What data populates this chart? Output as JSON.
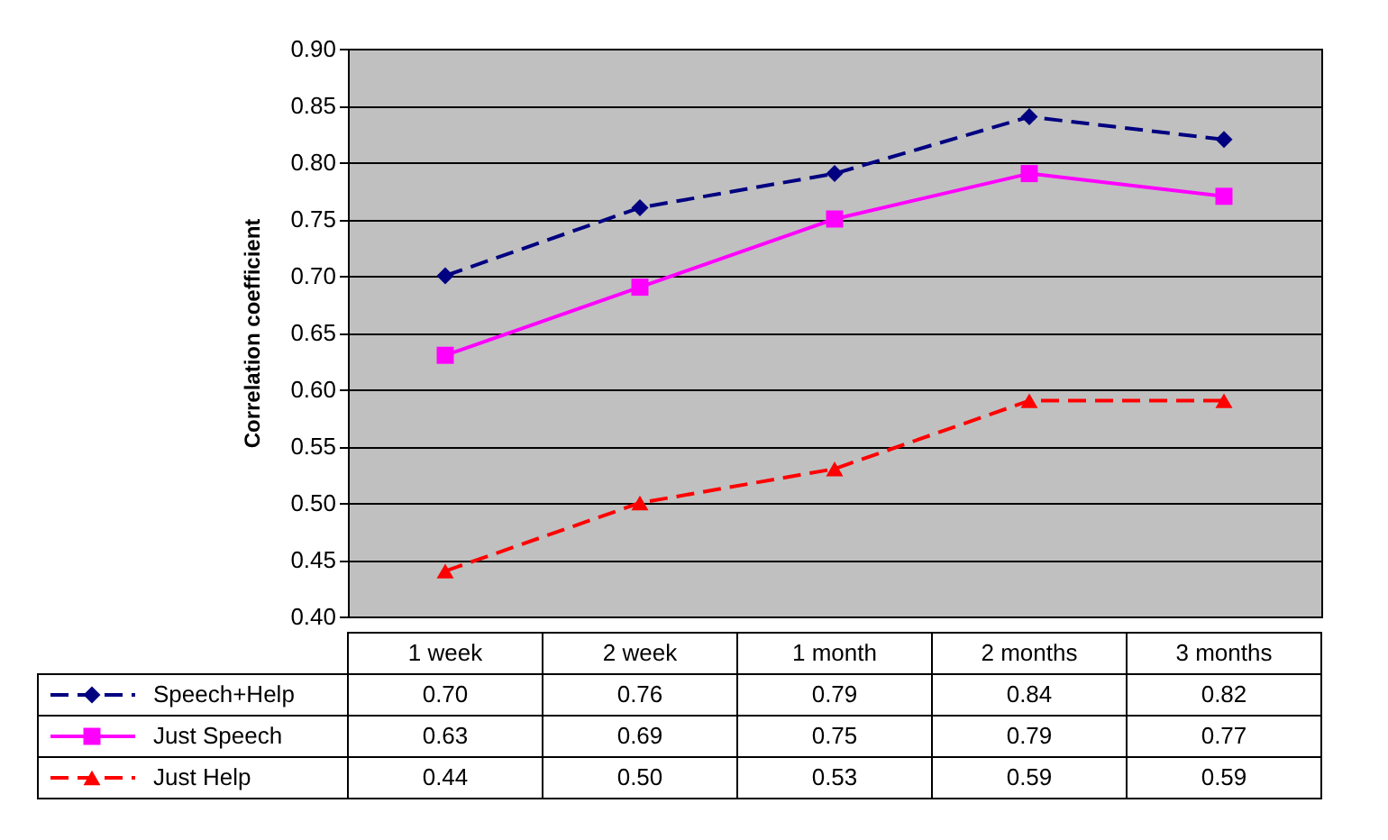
{
  "chart_data": {
    "type": "line",
    "ylabel": "Correlation coefficient",
    "categories": [
      "1 week",
      "2 week",
      "1 month",
      "2 months",
      "3 months"
    ],
    "series": [
      {
        "name": "Speech+Help",
        "color": "#000080",
        "values": [
          0.7,
          0.76,
          0.79,
          0.84,
          0.82
        ],
        "value_labels": [
          "0.70",
          "0.76",
          "0.79",
          "0.84",
          "0.82"
        ],
        "marker": "diamond",
        "line_style": "dashed"
      },
      {
        "name": "Just Speech",
        "color": "#ff00ff",
        "values": [
          0.63,
          0.69,
          0.75,
          0.79,
          0.77
        ],
        "value_labels": [
          "0.63",
          "0.69",
          "0.75",
          "0.79",
          "0.77"
        ],
        "marker": "square",
        "line_style": "solid"
      },
      {
        "name": "Just Help",
        "color": "#ff0000",
        "values": [
          0.44,
          0.5,
          0.53,
          0.59,
          0.59
        ],
        "value_labels": [
          "0.44",
          "0.50",
          "0.53",
          "0.59",
          "0.59"
        ],
        "marker": "triangle",
        "line_style": "dashed"
      }
    ],
    "ylim": [
      0.4,
      0.9
    ],
    "yticks": [
      {
        "value": 0.4,
        "label": "0.40"
      },
      {
        "value": 0.45,
        "label": "0.45"
      },
      {
        "value": 0.5,
        "label": "0.50"
      },
      {
        "value": 0.55,
        "label": "0.55"
      },
      {
        "value": 0.6,
        "label": "0.60"
      },
      {
        "value": 0.65,
        "label": "0.65"
      },
      {
        "value": 0.7,
        "label": "0.70"
      },
      {
        "value": 0.75,
        "label": "0.75"
      },
      {
        "value": 0.8,
        "label": "0.80"
      },
      {
        "value": 0.85,
        "label": "0.85"
      },
      {
        "value": 0.9,
        "label": "0.90"
      }
    ],
    "grid": "y",
    "legend": "bottom"
  }
}
